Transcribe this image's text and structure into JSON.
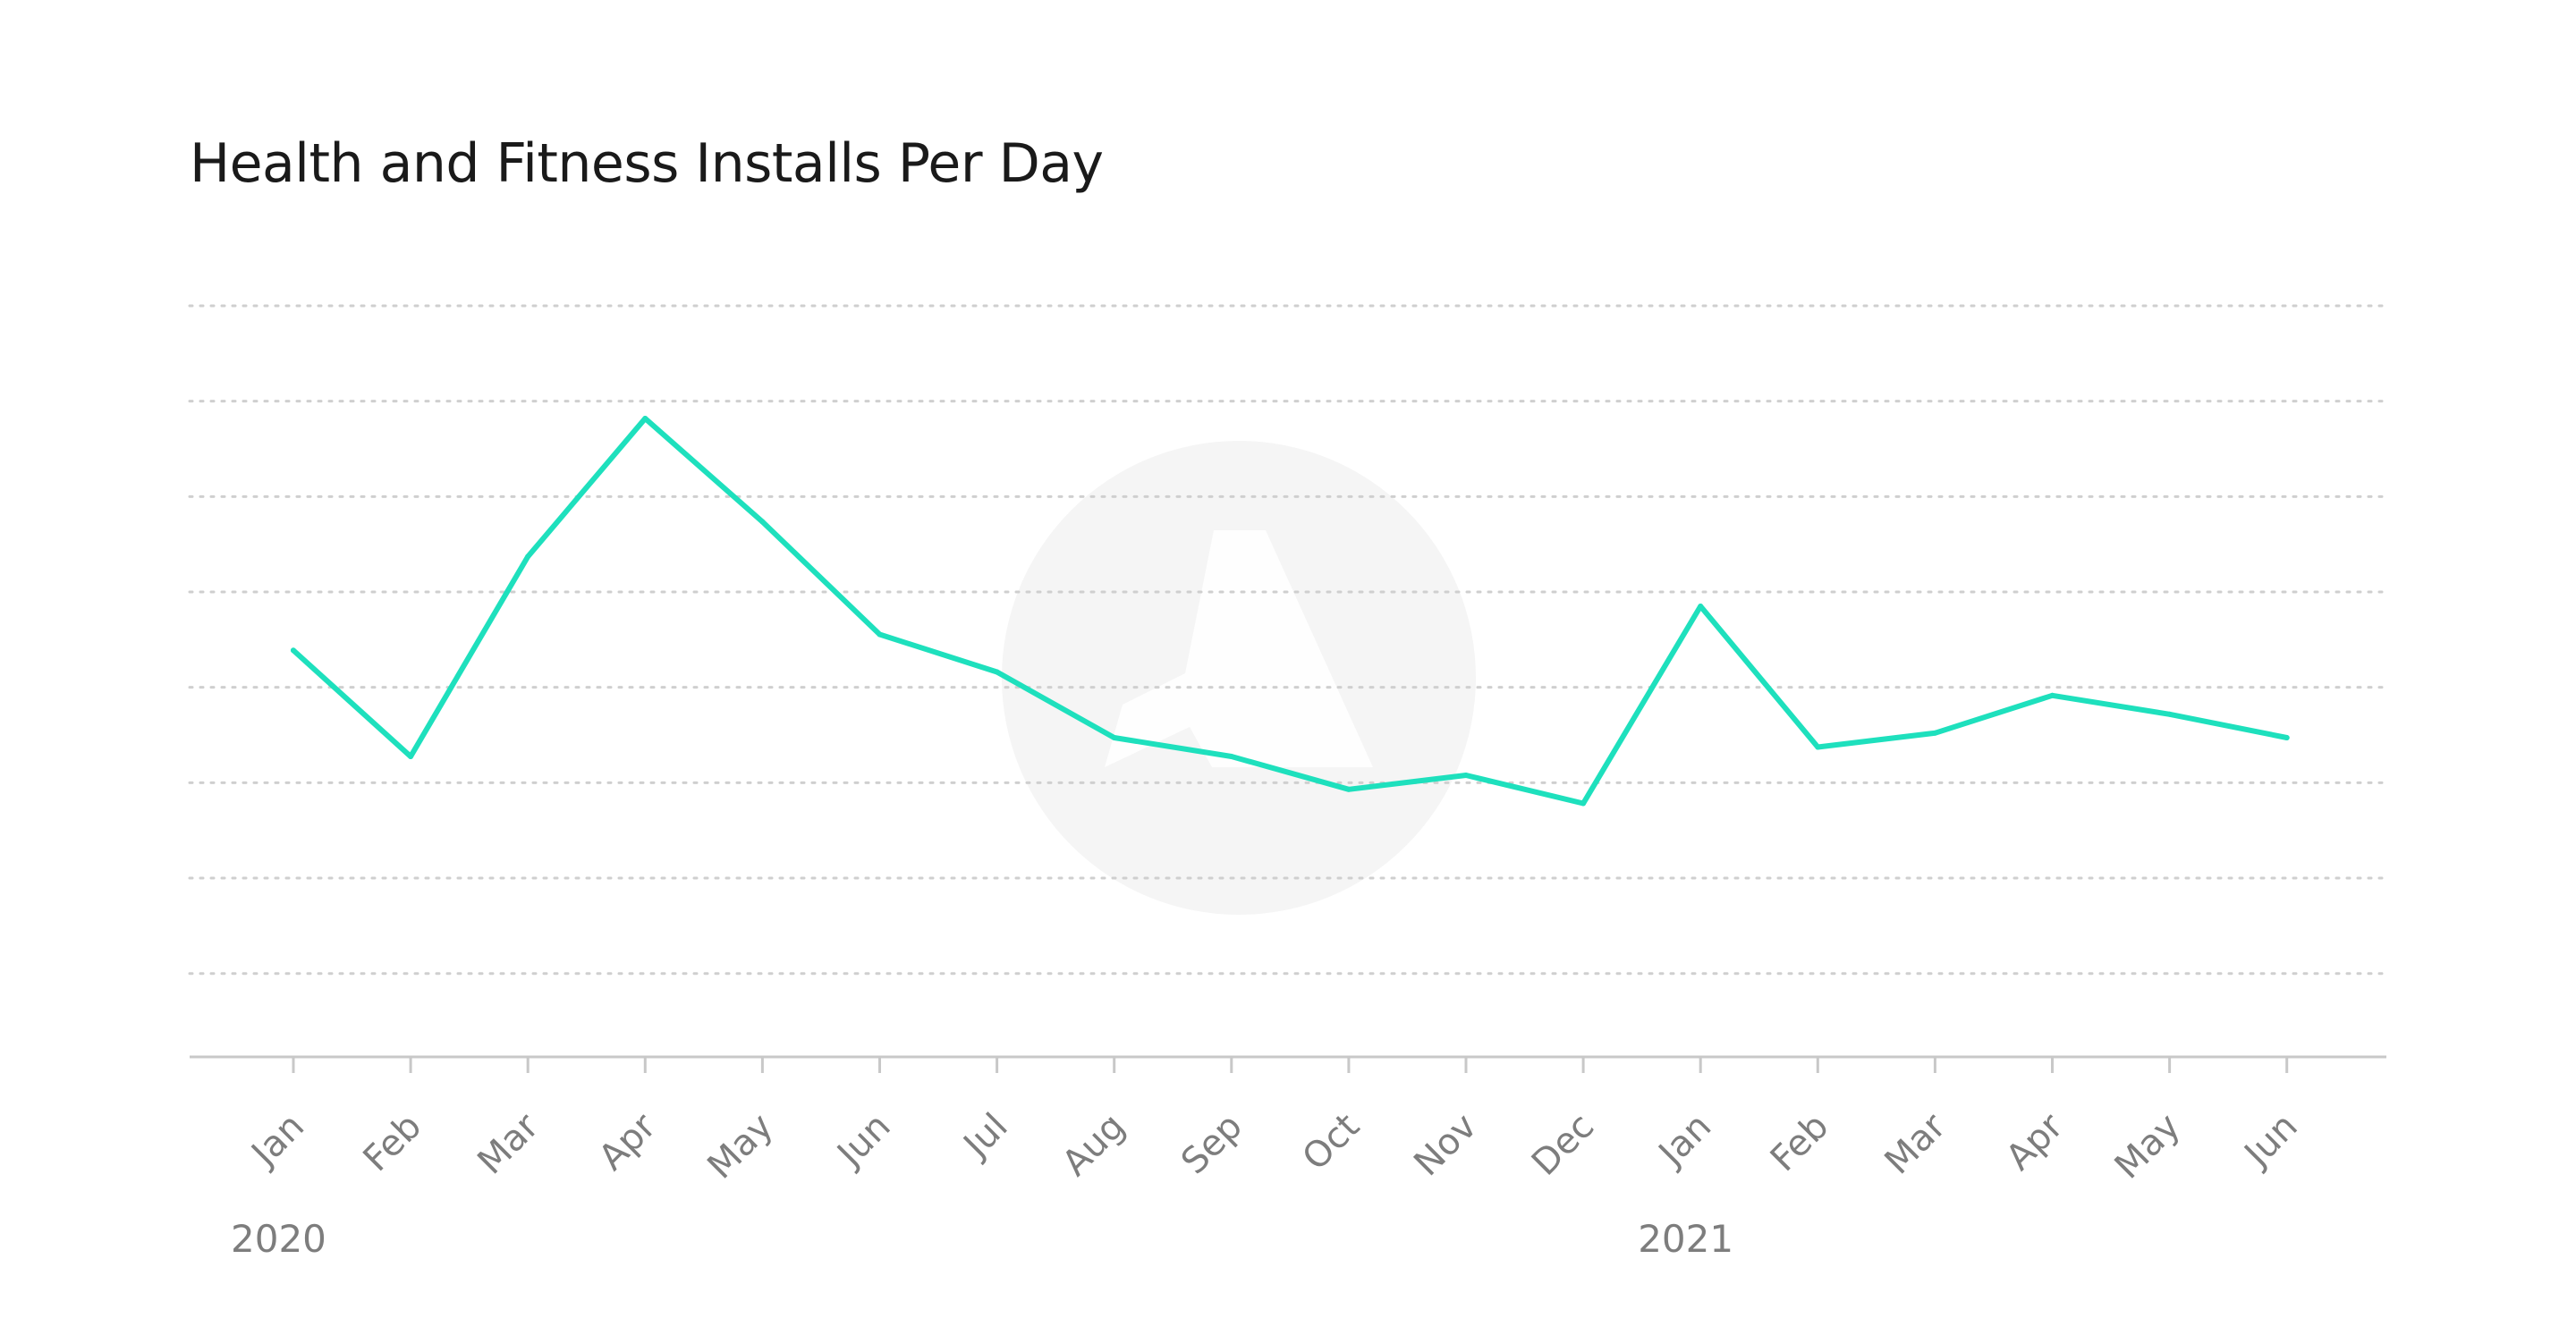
{
  "title": "Health and Fitness Installs Per Day",
  "colors": {
    "line": "#1ee0bd",
    "grid": "#cfcfcf",
    "axis": "#c8c8c8",
    "text": "#1a1a1a",
    "tick_text": "#7d7d7d",
    "watermark": "#f5f5f5"
  },
  "watermark_icon": "logo-watermark-icon",
  "chart_data": {
    "type": "line",
    "title": "Health and Fitness Installs Per Day",
    "xlabel": "",
    "ylabel": "",
    "grid": true,
    "y_tick_labels_shown": false,
    "categories": [
      "Jan",
      "Feb",
      "Mar",
      "Apr",
      "May",
      "Jun",
      "Jul",
      "Aug",
      "Sep",
      "Oct",
      "Nov",
      "Dec",
      "Jan",
      "Feb",
      "Mar",
      "Apr",
      "May",
      "Jun"
    ],
    "year_labels": [
      "2020",
      "2021"
    ],
    "series": [
      {
        "values": [
          4.33,
          3.2,
          5.33,
          6.8,
          5.7,
          4.5,
          4.1,
          3.4,
          3.2,
          2.85,
          3.0,
          2.7,
          4.8,
          3.3,
          3.45,
          3.85,
          3.65,
          3.4
        ]
      }
    ],
    "ylim": [
      0,
      8
    ]
  }
}
